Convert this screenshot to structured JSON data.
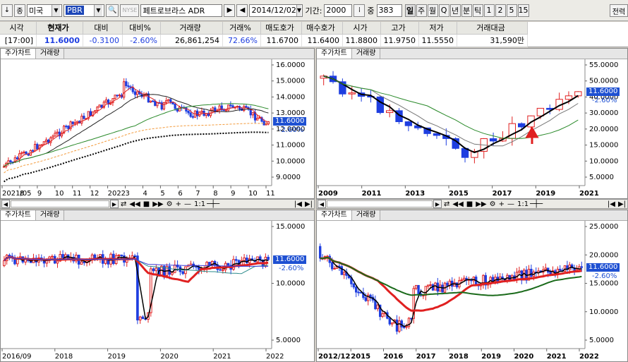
{
  "toolbar": {
    "nav_left": "↓",
    "market_combo": "종",
    "market_value": "미국",
    "ticker_value": "PBR",
    "nyse_label": "NYSE",
    "stock_name": "페트로브라스 ADR",
    "date_value": "2014/12/02",
    "period_label": "기간:",
    "period_value": "2000",
    "count_prefix": "중",
    "count_value": "383",
    "tabs": [
      "일",
      "주",
      "월",
      "Q",
      "년",
      "분",
      "틱",
      "1",
      "2",
      "5",
      "15"
    ],
    "active_tab": "일",
    "right_button": "전력"
  },
  "quote": {
    "headers": [
      "시각",
      "현재가",
      "대비",
      "대비%",
      "거래량",
      "거래%",
      "매도호가",
      "매수호가",
      "시가",
      "고가",
      "저가",
      "거래대금"
    ],
    "values": [
      "[17:00]",
      "11.6000",
      "-0.3100",
      "-2.60%",
      "26,861,254",
      "72.66%",
      "11.6700",
      "11.6400",
      "11.8800",
      "11.9750",
      "11.5550",
      "31,590만"
    ]
  },
  "pane_tabs": {
    "price": "주가차트",
    "volume": "거래량"
  },
  "panes": [
    {
      "id": "tl",
      "y_ticks": [
        "16.0000",
        "15.0000",
        "14.0000",
        "13.0000",
        "12.0000",
        "11.0000",
        "10.0000",
        "9.0000"
      ],
      "x_ticks": [
        "2021/05",
        "8",
        "9",
        "10",
        "11",
        "12",
        "2022",
        "3",
        "4",
        "5",
        "6",
        "7",
        "8",
        "9",
        "10",
        "11"
      ],
      "current": "11.6000",
      "pct": "-2.60%"
    },
    {
      "id": "tr",
      "y_ticks": [
        "55.0000",
        "50.0000",
        "40.0000",
        "30.0000",
        "20.0000",
        "15.0000",
        "10.0000",
        "5.0000"
      ],
      "x_ticks": [
        "2009",
        "2011",
        "2013",
        "2015",
        "2017",
        "2019",
        "2021"
      ],
      "current": "11.6000",
      "pct": "-2.60%"
    },
    {
      "id": "bl",
      "y_ticks": [
        "15.0000",
        "10.0000",
        "5.0000"
      ],
      "x_ticks": [
        "2016/09",
        "2018",
        "2019",
        "2020",
        "2021",
        "2022"
      ],
      "current": "11.6000",
      "pct": "-2.60%"
    },
    {
      "id": "br",
      "y_ticks": [
        "25.0000",
        "20.0000",
        "15.0000",
        "10.0000",
        "5.0000"
      ],
      "x_ticks": [
        "2012/12",
        "2015",
        "2016",
        "2017",
        "2018",
        "2019",
        "2020",
        "2021",
        "2022"
      ],
      "current": "11.6000",
      "pct": "-2.60%"
    }
  ],
  "scroll": {
    "zoom_label": "1:1"
  },
  "colors": {
    "up": "#e02020",
    "down": "#1e3ee0",
    "accent": "#1c46b8"
  }
}
